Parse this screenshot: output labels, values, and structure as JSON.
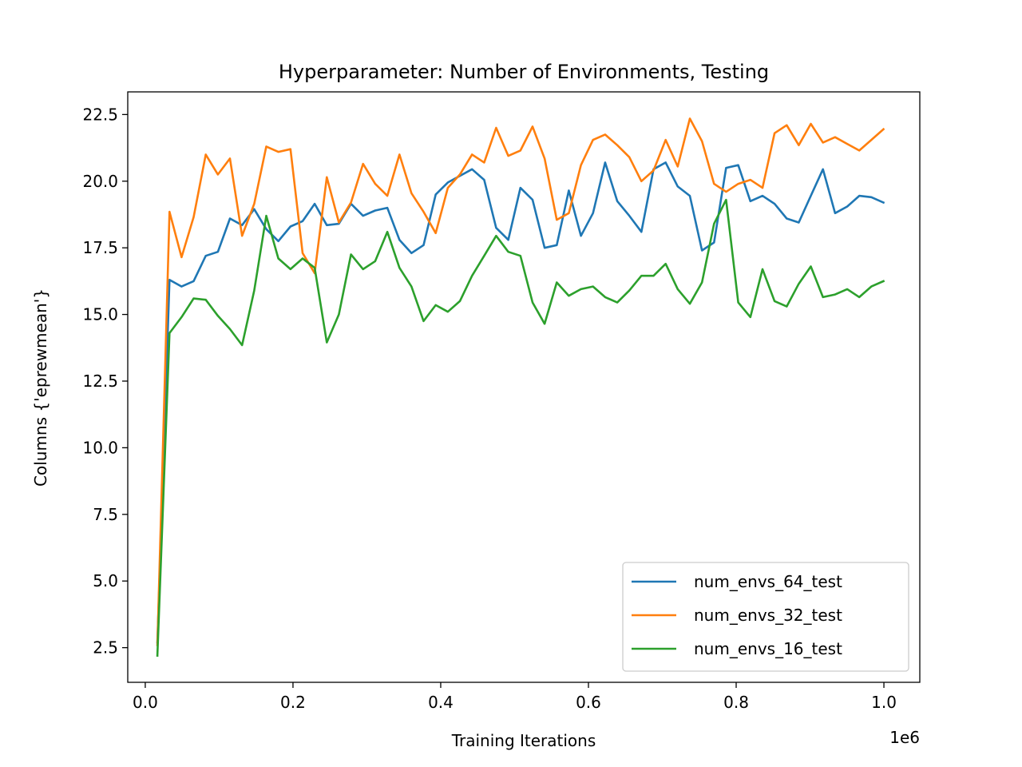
{
  "chart_data": {
    "type": "line",
    "title": "Hyperparameter: Number of Environments, Testing",
    "xlabel": "Training Iterations",
    "ylabel": "Columns {'eprewmean'}",
    "x_offset_label": "1e6",
    "xlim": [
      -0.0237,
      1.0486
    ],
    "ylim": [
      1.2,
      23.35
    ],
    "xticks": [
      0.0,
      0.2,
      0.4,
      0.6,
      0.8,
      1.0
    ],
    "xtick_labels": [
      "0.0",
      "0.2",
      "0.4",
      "0.6",
      "0.8",
      "1.0"
    ],
    "yticks": [
      2.5,
      5.0,
      7.5,
      10.0,
      12.5,
      15.0,
      17.5,
      20.0,
      22.5
    ],
    "ytick_labels": [
      "2.5",
      "5.0",
      "7.5",
      "10.0",
      "12.5",
      "15.0",
      "17.5",
      "20.0",
      "22.5"
    ],
    "grid": false,
    "legend_position": "lower-right",
    "x": [
      0.0164,
      0.0328,
      0.0492,
      0.0655,
      0.0819,
      0.0983,
      0.1147,
      0.1311,
      0.1475,
      0.1638,
      0.1802,
      0.1966,
      0.213,
      0.2294,
      0.2458,
      0.2621,
      0.2785,
      0.2949,
      0.3113,
      0.3277,
      0.3441,
      0.3604,
      0.3768,
      0.3932,
      0.4096,
      0.426,
      0.4424,
      0.4588,
      0.4751,
      0.4915,
      0.5079,
      0.5243,
      0.5407,
      0.5571,
      0.5734,
      0.5898,
      0.6062,
      0.6226,
      0.639,
      0.6554,
      0.6717,
      0.6881,
      0.7045,
      0.7209,
      0.7373,
      0.7537,
      0.77,
      0.7864,
      0.8028,
      0.8192,
      0.8356,
      0.852,
      0.8684,
      0.8847,
      0.9011,
      0.9175,
      0.9339,
      0.9503,
      0.9667,
      0.983,
      0.9994
    ],
    "series": [
      {
        "name": "num_envs_64_test",
        "color": "#1f77b4",
        "values": [
          2.7,
          16.3,
          16.05,
          16.25,
          17.2,
          17.35,
          18.6,
          18.35,
          18.95,
          18.2,
          17.75,
          18.3,
          18.5,
          19.15,
          18.35,
          18.4,
          19.15,
          18.7,
          18.9,
          19.0,
          17.8,
          17.3,
          17.6,
          19.5,
          19.95,
          20.2,
          20.45,
          20.05,
          18.25,
          17.8,
          19.75,
          19.3,
          17.5,
          17.6,
          19.65,
          17.95,
          18.8,
          20.7,
          19.25,
          18.7,
          18.1,
          20.45,
          20.7,
          19.8,
          19.45,
          17.4,
          17.7,
          20.5,
          20.6,
          19.25,
          19.45,
          19.15,
          18.6,
          18.45,
          19.45,
          20.45,
          18.8,
          19.05,
          19.45,
          19.4,
          19.2
        ]
      },
      {
        "name": "num_envs_32_test",
        "color": "#ff7f0e",
        "values": [
          2.6,
          18.85,
          17.15,
          18.65,
          21.0,
          20.25,
          20.85,
          17.95,
          19.15,
          21.3,
          21.1,
          21.2,
          17.3,
          16.55,
          20.15,
          18.45,
          19.2,
          20.65,
          19.9,
          19.45,
          21.0,
          19.55,
          18.85,
          18.05,
          19.75,
          20.25,
          21.0,
          20.7,
          22.0,
          20.95,
          21.15,
          22.05,
          20.85,
          18.55,
          18.8,
          20.6,
          21.55,
          21.75,
          21.35,
          20.9,
          20.0,
          20.4,
          21.55,
          20.55,
          22.35,
          21.5,
          19.9,
          19.6,
          19.9,
          20.05,
          19.75,
          21.8,
          22.1,
          21.35,
          22.15,
          21.45,
          21.65,
          21.4,
          21.15,
          21.55,
          21.95
        ]
      },
      {
        "name": "num_envs_16_test",
        "color": "#2ca02c",
        "values": [
          2.2,
          14.3,
          14.9,
          15.6,
          15.55,
          14.95,
          14.45,
          13.85,
          15.9,
          18.7,
          17.1,
          16.7,
          17.1,
          16.75,
          13.95,
          15.0,
          17.25,
          16.7,
          17.0,
          18.1,
          16.75,
          16.05,
          14.75,
          15.35,
          15.1,
          15.5,
          16.45,
          17.2,
          17.95,
          17.35,
          17.2,
          15.45,
          14.65,
          16.2,
          15.7,
          15.95,
          16.05,
          15.65,
          15.45,
          15.9,
          16.45,
          16.45,
          16.9,
          15.95,
          15.4,
          16.2,
          18.4,
          19.3,
          15.45,
          14.9,
          16.7,
          15.5,
          15.3,
          16.15,
          16.8,
          15.65,
          15.75,
          15.95,
          15.65,
          16.05,
          16.25
        ]
      }
    ]
  }
}
